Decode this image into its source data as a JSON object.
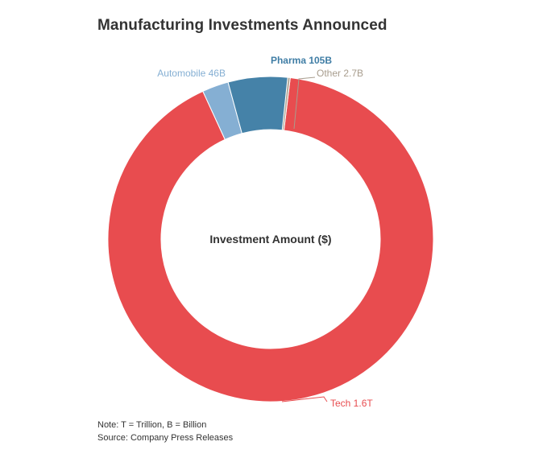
{
  "chart_data": {
    "type": "pie",
    "variant": "donut",
    "title": "Manufacturing Investments Announced",
    "center_label": "Investment Amount ($)",
    "unit": "USD billions",
    "slices": [
      {
        "name": "Tech",
        "value": 1600,
        "display": "1.6T",
        "label": "Tech 1.6T",
        "color": "#e84c4f",
        "label_color": "#e84c4f"
      },
      {
        "name": "Automobile",
        "value": 46,
        "display": "46B",
        "label": "Automobile 46B",
        "color": "#85afd3",
        "label_color": "#85afd3"
      },
      {
        "name": "Pharma",
        "value": 105,
        "display": "105B",
        "label": "Pharma 105B",
        "color": "#4582a8",
        "label_color": "#3f7da5"
      },
      {
        "name": "Other",
        "value": 2.7,
        "display": "2.7B",
        "label": "Other 2.7B",
        "color": "#b5a999",
        "label_color": "#a89d8e"
      }
    ]
  },
  "footer": {
    "note": "Note: T = Trillion, B = Billion",
    "source": "Source: Company Press Releases"
  }
}
